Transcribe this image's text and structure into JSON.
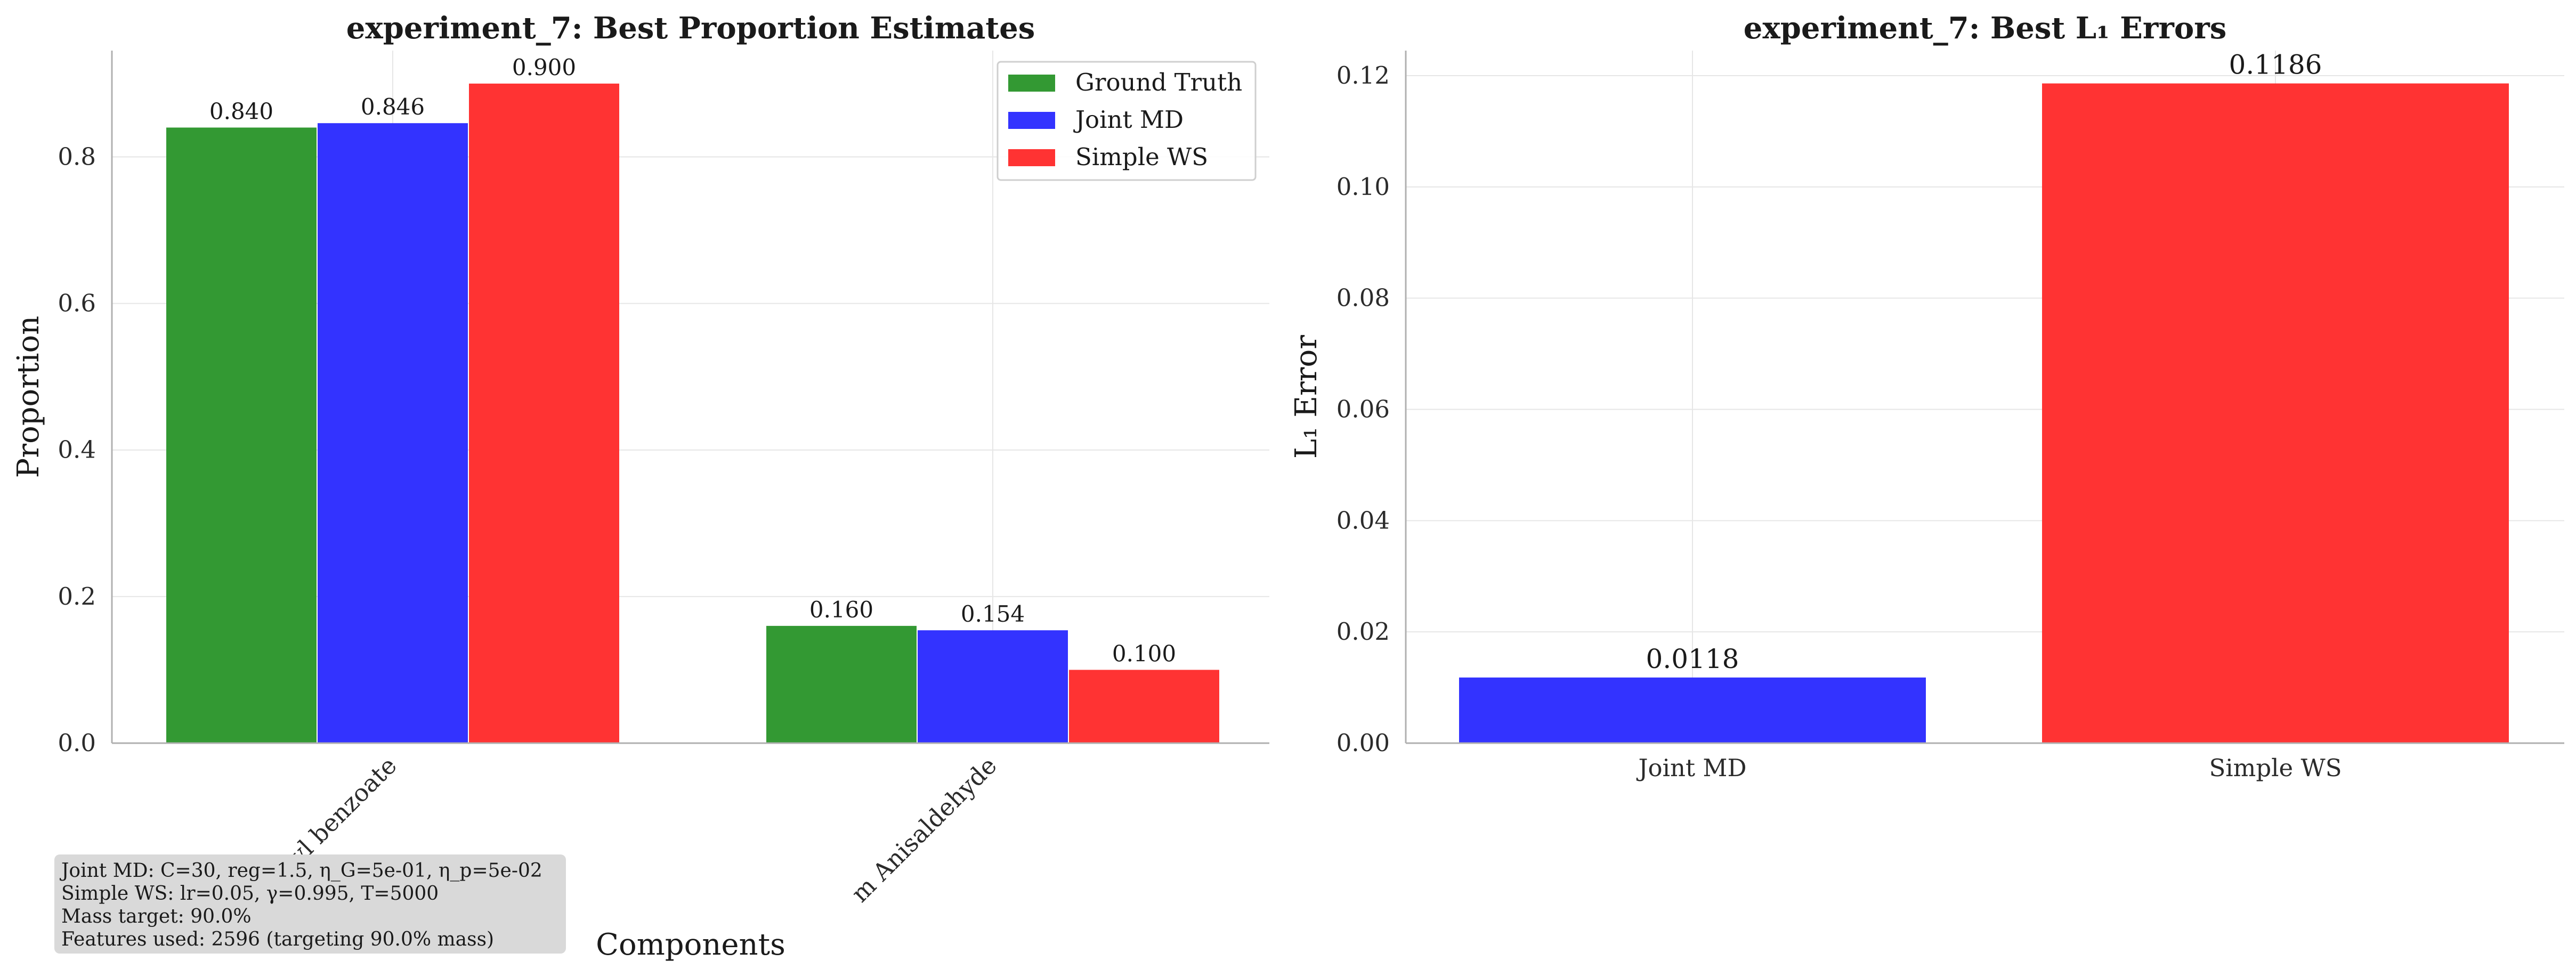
{
  "chart_data": [
    {
      "type": "bar",
      "title": "experiment_7: Best Proportion Estimates",
      "xlabel": "Components",
      "ylabel": "Proportion",
      "categories": [
        "Methyl benzoate",
        "m Anisaldehyde"
      ],
      "series": [
        {
          "name": "Ground Truth",
          "color": "#339933",
          "values": [
            0.84,
            0.16
          ],
          "labels": [
            "0.840",
            "0.160"
          ]
        },
        {
          "name": "Joint MD",
          "color": "#3333ff",
          "values": [
            0.846,
            0.154
          ],
          "labels": [
            "0.846",
            "0.154"
          ]
        },
        {
          "name": "Simple WS",
          "color": "#ff3333",
          "values": [
            0.9,
            0.1
          ],
          "labels": [
            "0.900",
            "0.100"
          ]
        }
      ],
      "ylim": [
        0,
        0.945
      ],
      "yticks": [
        "0.0",
        "0.2",
        "0.4",
        "0.6",
        "0.8"
      ],
      "legend": "top-right",
      "grid": true,
      "annotation": [
        "Joint MD: C=30, reg=1.5, η_G=5e-01, η_p=5e-02",
        "Simple WS: lr=0.05, γ=0.995, T=5000",
        "Mass target: 90.0%",
        "Features used: 2596 (targeting 90.0% mass)"
      ]
    },
    {
      "type": "bar",
      "title": "experiment_7: Best L₁ Errors",
      "xlabel": "",
      "ylabel": "L₁ Error",
      "categories": [
        "Joint MD",
        "Simple WS"
      ],
      "values": [
        0.0118,
        0.1186
      ],
      "labels": [
        "0.0118",
        "0.1186"
      ],
      "colors": [
        "#3333ff",
        "#ff3333"
      ],
      "ylim": [
        0,
        0.1245
      ],
      "yticks": [
        "0.00",
        "0.02",
        "0.04",
        "0.06",
        "0.08",
        "0.10",
        "0.12"
      ],
      "grid": true
    }
  ]
}
